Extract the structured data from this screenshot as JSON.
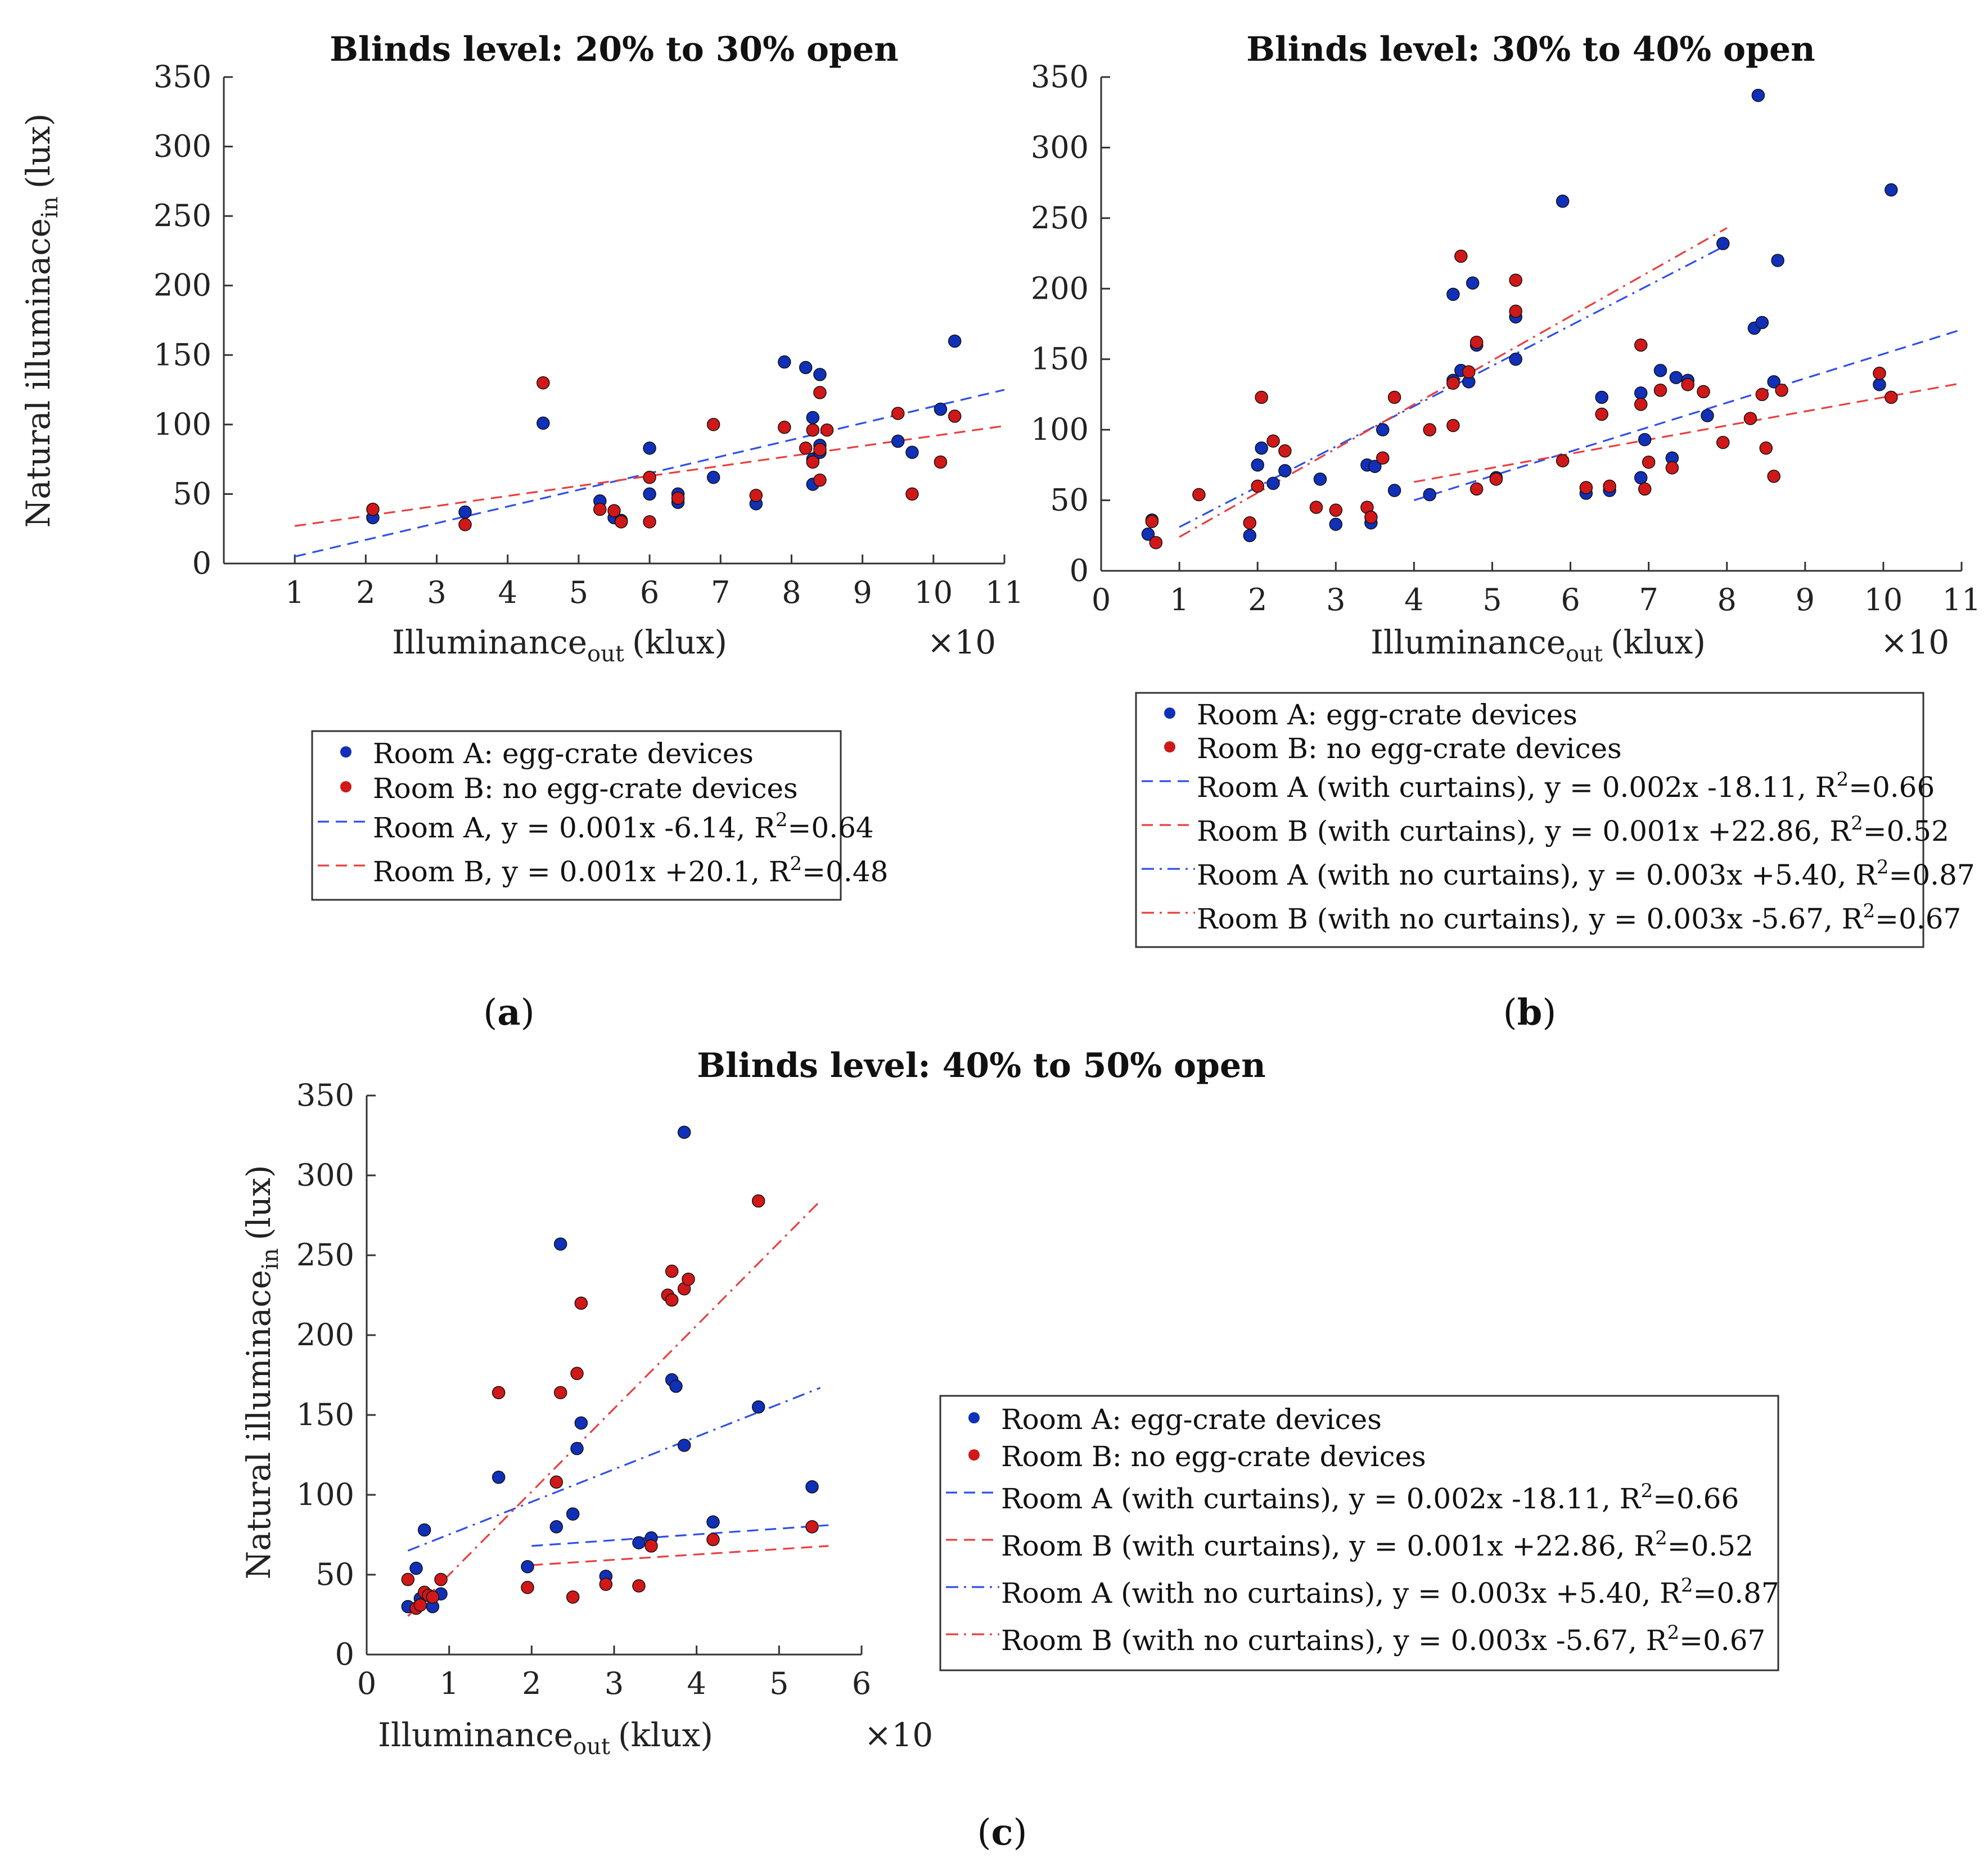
{
  "chart_data": [
    {
      "id": "a",
      "panel_label": "(a)",
      "type": "scatter",
      "title": "Blinds level: 20% to 30% open",
      "xlabel": "Illuminance",
      "xlabel_sub": "out",
      "xlabel_unit": "(klux)",
      "x_multiplier": "×10",
      "ylabel": "Natural illuminace",
      "ylabel_sub": "in",
      "ylabel_unit": "(lux)",
      "xlim": [
        0,
        11
      ],
      "ylim": [
        0,
        350
      ],
      "xticks": [
        1,
        2,
        3,
        4,
        5,
        6,
        7,
        8,
        9,
        10,
        11
      ],
      "yticks": [
        0,
        50,
        100,
        150,
        200,
        250,
        300,
        350
      ],
      "grid": false,
      "legend_position": "below",
      "series": [
        {
          "name": "Room A: egg-crate devices",
          "kind": "scatter",
          "color": "#1030b8",
          "points": [
            [
              2.1,
              33
            ],
            [
              3.4,
              37
            ],
            [
              4.5,
              101
            ],
            [
              5.3,
              45
            ],
            [
              5.5,
              33
            ],
            [
              5.6,
              31
            ],
            [
              6.0,
              83
            ],
            [
              6.0,
              50
            ],
            [
              6.4,
              50
            ],
            [
              6.4,
              44
            ],
            [
              6.9,
              62
            ],
            [
              7.5,
              43
            ],
            [
              7.9,
              145
            ],
            [
              8.2,
              141
            ],
            [
              8.3,
              57
            ],
            [
              8.3,
              75
            ],
            [
              8.3,
              105
            ],
            [
              8.4,
              80
            ],
            [
              8.4,
              136
            ],
            [
              8.4,
              85
            ],
            [
              9.5,
              88
            ],
            [
              9.7,
              80
            ],
            [
              10.1,
              111
            ],
            [
              10.3,
              160
            ]
          ]
        },
        {
          "name": "Room B: no egg-crate devices",
          "kind": "scatter",
          "color": "#d01818",
          "points": [
            [
              2.1,
              39
            ],
            [
              3.4,
              28
            ],
            [
              4.5,
              130
            ],
            [
              5.3,
              39
            ],
            [
              5.5,
              38
            ],
            [
              5.6,
              30
            ],
            [
              6.0,
              62
            ],
            [
              6.0,
              30
            ],
            [
              6.4,
              47
            ],
            [
              6.9,
              100
            ],
            [
              7.5,
              49
            ],
            [
              7.9,
              98
            ],
            [
              8.2,
              83
            ],
            [
              8.3,
              73
            ],
            [
              8.3,
              96
            ],
            [
              8.4,
              82
            ],
            [
              8.4,
              123
            ],
            [
              8.4,
              60
            ],
            [
              8.5,
              96
            ],
            [
              9.5,
              108
            ],
            [
              9.7,
              50
            ],
            [
              10.1,
              73
            ],
            [
              10.3,
              106
            ]
          ]
        },
        {
          "name": "Room A, y = 0.001x -6.14, R",
          "name_sup": "2",
          "name_tail": "=0.64",
          "kind": "fit",
          "dash": "dashed",
          "color": "#3050e8",
          "line": [
            [
              1,
              5
            ],
            [
              11,
              125
            ]
          ]
        },
        {
          "name": "Room B, y = 0.001x +20.1, R",
          "name_sup": "2",
          "name_tail": "=0.48",
          "kind": "fit",
          "dash": "dashed",
          "color": "#e84040",
          "line": [
            [
              1,
              27
            ],
            [
              11,
              99
            ]
          ]
        }
      ]
    },
    {
      "id": "b",
      "panel_label": "(b)",
      "type": "scatter",
      "title": "Blinds level: 30% to 40% open",
      "xlabel": "Illuminance",
      "xlabel_sub": "out",
      "xlabel_unit": "(klux)",
      "x_multiplier": "×10",
      "ylabel": "",
      "ylabel_sub": "",
      "ylabel_unit": "",
      "xlim": [
        0,
        11
      ],
      "ylim": [
        0,
        350
      ],
      "xticks": [
        0,
        1,
        2,
        3,
        4,
        5,
        6,
        7,
        8,
        9,
        10,
        11
      ],
      "yticks": [
        0,
        50,
        100,
        150,
        200,
        250,
        300,
        350
      ],
      "grid": false,
      "legend_position": "below",
      "series": [
        {
          "name": "Room A: egg-crate devices",
          "kind": "scatter",
          "color": "#1030b8",
          "points": [
            [
              0.6,
              26
            ],
            [
              0.65,
              36
            ],
            [
              1.9,
              25
            ],
            [
              2.0,
              75
            ],
            [
              2.05,
              87
            ],
            [
              2.2,
              62
            ],
            [
              2.35,
              71
            ],
            [
              2.8,
              65
            ],
            [
              3.0,
              33
            ],
            [
              3.4,
              75
            ],
            [
              3.45,
              34
            ],
            [
              3.5,
              74
            ],
            [
              3.6,
              100
            ],
            [
              3.75,
              57
            ],
            [
              4.2,
              54
            ],
            [
              4.5,
              196
            ],
            [
              4.5,
              135
            ],
            [
              4.6,
              142
            ],
            [
              4.7,
              134
            ],
            [
              4.75,
              204
            ],
            [
              4.8,
              160
            ],
            [
              5.05,
              66
            ],
            [
              5.3,
              180
            ],
            [
              5.3,
              150
            ],
            [
              5.9,
              262
            ],
            [
              6.2,
              55
            ],
            [
              6.4,
              123
            ],
            [
              6.5,
              57
            ],
            [
              6.9,
              66
            ],
            [
              6.9,
              126
            ],
            [
              6.95,
              93
            ],
            [
              7.15,
              142
            ],
            [
              7.3,
              80
            ],
            [
              7.35,
              137
            ],
            [
              7.5,
              135
            ],
            [
              7.75,
              110
            ],
            [
              7.95,
              232
            ],
            [
              8.35,
              172
            ],
            [
              8.45,
              176
            ],
            [
              8.4,
              337
            ],
            [
              8.6,
              134
            ],
            [
              8.65,
              220
            ],
            [
              9.95,
              132
            ],
            [
              10.1,
              270
            ]
          ]
        },
        {
          "name": "Room B: no egg-crate devices",
          "kind": "scatter",
          "color": "#d01818",
          "points": [
            [
              0.65,
              35
            ],
            [
              0.7,
              20
            ],
            [
              1.25,
              54
            ],
            [
              1.9,
              34
            ],
            [
              2.0,
              60
            ],
            [
              2.05,
              123
            ],
            [
              2.2,
              92
            ],
            [
              2.35,
              85
            ],
            [
              2.75,
              45
            ],
            [
              3.0,
              43
            ],
            [
              3.4,
              45
            ],
            [
              3.45,
              38
            ],
            [
              3.6,
              80
            ],
            [
              3.75,
              123
            ],
            [
              4.2,
              100
            ],
            [
              4.5,
              103
            ],
            [
              4.5,
              133
            ],
            [
              4.6,
              223
            ],
            [
              4.7,
              141
            ],
            [
              4.8,
              162
            ],
            [
              4.8,
              58
            ],
            [
              5.05,
              65
            ],
            [
              5.3,
              184
            ],
            [
              5.3,
              206
            ],
            [
              5.9,
              78
            ],
            [
              6.2,
              59
            ],
            [
              6.4,
              111
            ],
            [
              6.5,
              60
            ],
            [
              6.9,
              160
            ],
            [
              6.9,
              118
            ],
            [
              6.95,
              58
            ],
            [
              7.0,
              77
            ],
            [
              7.15,
              128
            ],
            [
              7.3,
              73
            ],
            [
              7.5,
              132
            ],
            [
              7.7,
              127
            ],
            [
              7.95,
              91
            ],
            [
              8.3,
              108
            ],
            [
              8.45,
              125
            ],
            [
              8.5,
              87
            ],
            [
              8.6,
              67
            ],
            [
              8.7,
              128
            ],
            [
              9.95,
              140
            ],
            [
              10.1,
              123
            ]
          ]
        },
        {
          "name": "Room A (with curtains), y = 0.002x -18.11, R",
          "name_sup": "2",
          "name_tail": "=0.66",
          "kind": "fit",
          "dash": "dashed",
          "color": "#3050e8",
          "line": [
            [
              4,
              50
            ],
            [
              11,
              171
            ]
          ]
        },
        {
          "name": "Room B (with curtains), y = 0.001x +22.86, R",
          "name_sup": "2",
          "name_tail": "=0.52",
          "kind": "fit",
          "dash": "dashed",
          "color": "#e84040",
          "line": [
            [
              4,
              63
            ],
            [
              11,
              133
            ]
          ]
        },
        {
          "name": "Room A (with no curtains), y = 0.003x +5.40, R",
          "name_sup": "2",
          "name_tail": "=0.87",
          "kind": "fit",
          "dash": "dashdot",
          "color": "#3050e8",
          "line": [
            [
              1,
              31
            ],
            [
              8,
              231
            ]
          ]
        },
        {
          "name": "Room B (with no curtains), y = 0.003x -5.67, R",
          "name_sup": "2",
          "name_tail": "=0.67",
          "kind": "fit",
          "dash": "dashdot",
          "color": "#e84040",
          "line": [
            [
              1,
              24
            ],
            [
              8,
              243
            ]
          ]
        }
      ]
    },
    {
      "id": "c",
      "panel_label": "(c)",
      "type": "scatter",
      "title": "Blinds level: 40% to 50% open",
      "xlabel": "Illuminance",
      "xlabel_sub": "out",
      "xlabel_unit": "(klux)",
      "x_multiplier": "×10",
      "ylabel": "Natural illuminace",
      "ylabel_sub": "in",
      "ylabel_unit": "(lux)",
      "xlim": [
        0,
        6
      ],
      "ylim": [
        0,
        350
      ],
      "xticks": [
        0,
        1,
        2,
        3,
        4,
        5,
        6
      ],
      "yticks": [
        0,
        50,
        100,
        150,
        200,
        250,
        300,
        350
      ],
      "grid": false,
      "legend_position": "right",
      "series": [
        {
          "name": "Room A: egg-crate devices",
          "kind": "scatter",
          "color": "#1030b8",
          "points": [
            [
              0.5,
              30
            ],
            [
              0.6,
              54
            ],
            [
              0.65,
              35
            ],
            [
              0.7,
              78
            ],
            [
              0.8,
              30
            ],
            [
              0.9,
              38
            ],
            [
              1.6,
              111
            ],
            [
              1.95,
              55
            ],
            [
              2.3,
              80
            ],
            [
              2.35,
              257
            ],
            [
              2.5,
              88
            ],
            [
              2.55,
              129
            ],
            [
              2.6,
              145
            ],
            [
              2.9,
              49
            ],
            [
              3.3,
              70
            ],
            [
              3.45,
              73
            ],
            [
              3.7,
              172
            ],
            [
              3.75,
              168
            ],
            [
              3.85,
              131
            ],
            [
              3.85,
              327
            ],
            [
              4.2,
              83
            ],
            [
              4.75,
              155
            ],
            [
              5.4,
              105
            ]
          ]
        },
        {
          "name": "Room B: no egg-crate devices",
          "kind": "scatter",
          "color": "#d01818",
          "points": [
            [
              0.5,
              47
            ],
            [
              0.6,
              29
            ],
            [
              0.65,
              31
            ],
            [
              0.7,
              39
            ],
            [
              0.75,
              37
            ],
            [
              0.8,
              36
            ],
            [
              0.9,
              47
            ],
            [
              1.6,
              164
            ],
            [
              1.95,
              42
            ],
            [
              2.3,
              108
            ],
            [
              2.35,
              164
            ],
            [
              2.5,
              36
            ],
            [
              2.55,
              176
            ],
            [
              2.6,
              220
            ],
            [
              2.9,
              44
            ],
            [
              3.3,
              43
            ],
            [
              3.45,
              68
            ],
            [
              3.65,
              225
            ],
            [
              3.7,
              222
            ],
            [
              3.7,
              240
            ],
            [
              3.85,
              229
            ],
            [
              3.9,
              235
            ],
            [
              4.2,
              72
            ],
            [
              4.75,
              284
            ],
            [
              5.4,
              80
            ]
          ]
        },
        {
          "name": "Room A (with curtains), y = 0.002x -18.11, R",
          "name_sup": "2",
          "name_tail": "=0.66",
          "kind": "fit",
          "dash": "dashed",
          "color": "#3050e8",
          "line": [
            [
              2,
              68
            ],
            [
              5.6,
              81
            ]
          ]
        },
        {
          "name": "Room B (with curtains), y = 0.001x +22.86, R",
          "name_sup": "2",
          "name_tail": "=0.52",
          "kind": "fit",
          "dash": "dashed",
          "color": "#e84040",
          "line": [
            [
              2,
              56
            ],
            [
              5.6,
              68
            ]
          ]
        },
        {
          "name": "Room A (with no curtains), y = 0.003x +5.40, R",
          "name_sup": "2",
          "name_tail": "=0.87",
          "kind": "fit",
          "dash": "dashdot",
          "color": "#3050e8",
          "line": [
            [
              0.5,
              65
            ],
            [
              5.5,
              167
            ]
          ]
        },
        {
          "name": "Room B (with no curtains), y = 0.003x -5.67, R",
          "name_sup": "2",
          "name_tail": "=0.67",
          "kind": "fit",
          "dash": "dashdot",
          "color": "#e84040",
          "line": [
            [
              0.5,
              24
            ],
            [
              5.5,
              284
            ]
          ]
        }
      ]
    }
  ]
}
